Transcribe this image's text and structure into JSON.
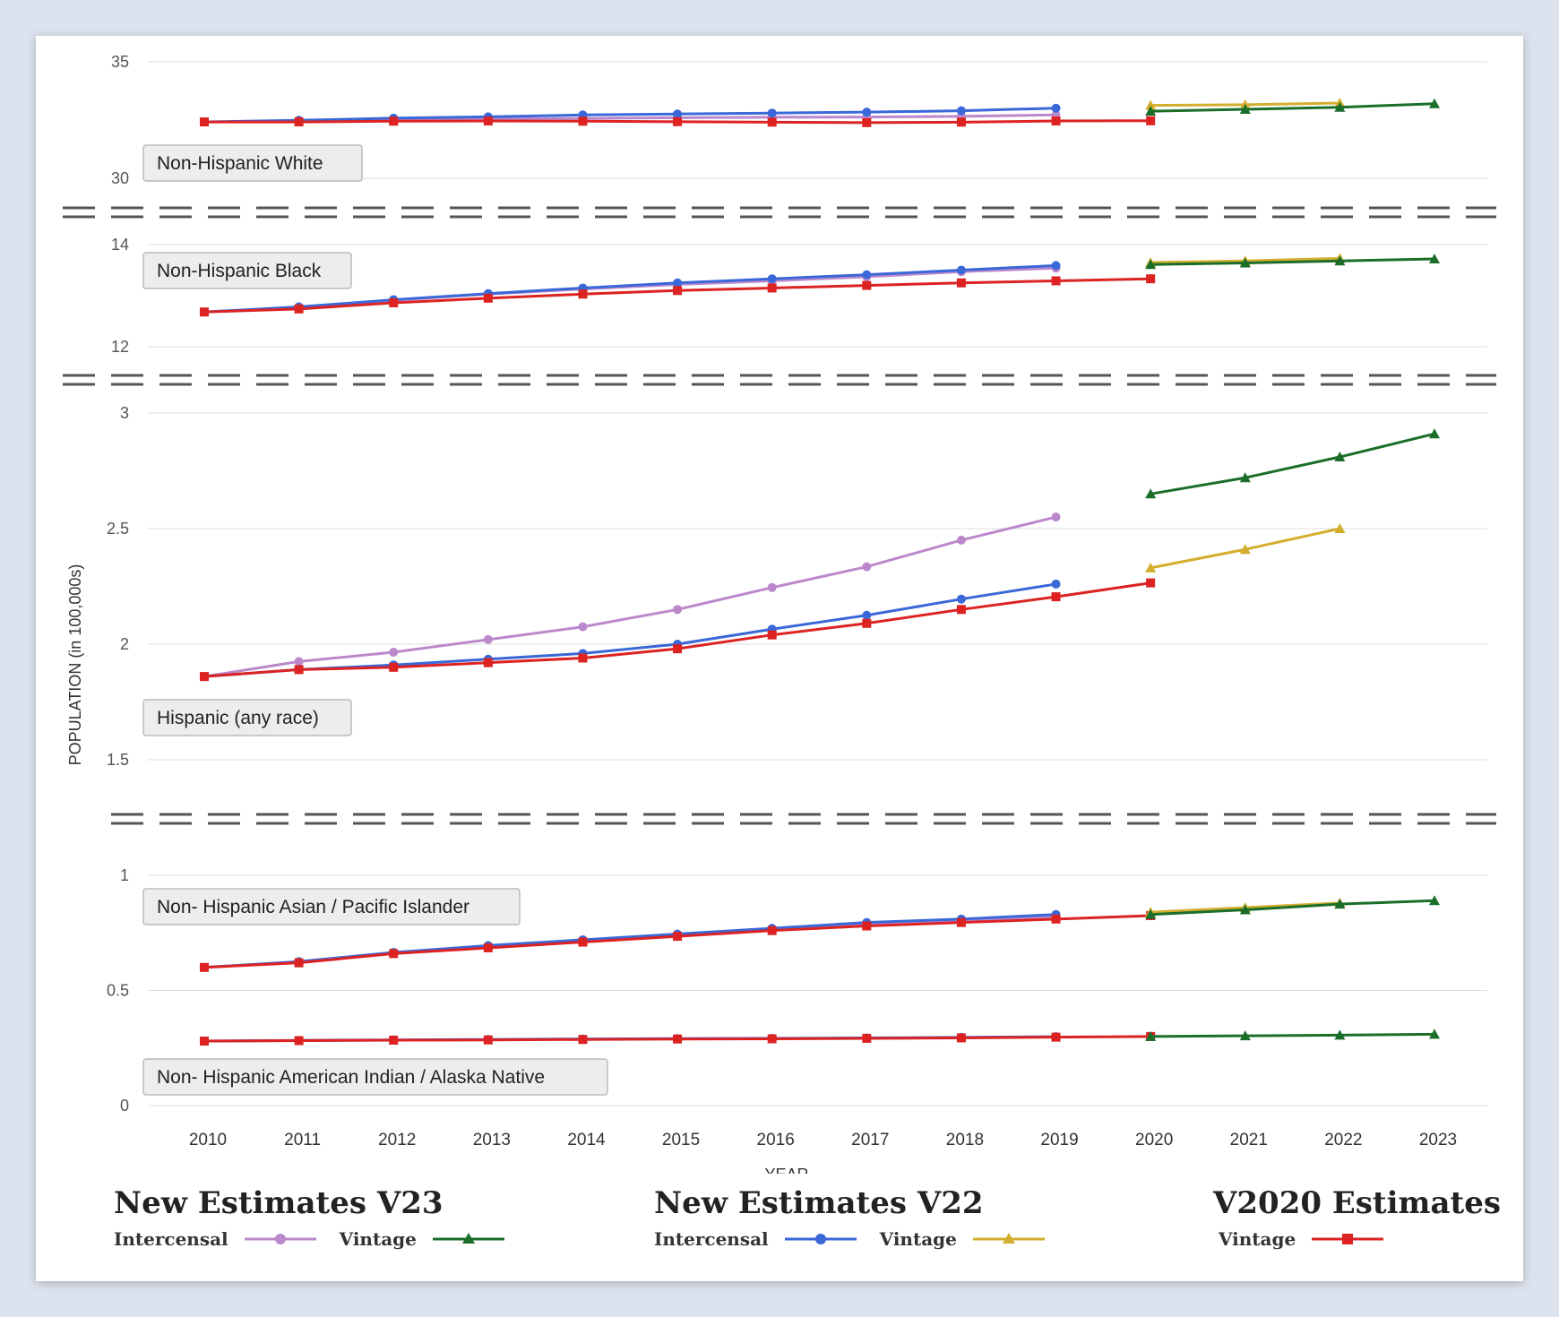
{
  "chart_data": {
    "type": "line",
    "title": "",
    "xlabel": "YEAR",
    "ylabel": "POPULATION (in 100,000s)",
    "x": [
      2010,
      2011,
      2012,
      2013,
      2014,
      2015,
      2016,
      2017,
      2018,
      2019,
      2020,
      2021,
      2022,
      2023
    ],
    "colors": {
      "v23_intercensal": "#bb88cc",
      "v23_vintage": "#1b6e2a",
      "v22_intercensal": "#3a68d8",
      "v22_vintage": "#d4ae2e",
      "v2020_vintage": "#dd2222"
    },
    "series_info": [
      {
        "key": "v23_intercensal",
        "name": "New Estimates V23 Intercensal",
        "marker": "circle"
      },
      {
        "key": "v22_intercensal",
        "name": "New Estimates V22 Intercensal",
        "marker": "circle"
      },
      {
        "key": "v2020_vintage",
        "name": "V2020 Estimates Vintage",
        "marker": "square"
      },
      {
        "key": "v22_vintage",
        "name": "New Estimates V22 Vintage",
        "marker": "triangle"
      },
      {
        "key": "v23_vintage",
        "name": "New Estimates V23 Vintage",
        "marker": "triangle"
      }
    ],
    "panels": [
      {
        "label": "Non-Hispanic White",
        "ylim": [
          30,
          35
        ],
        "ticks": [
          "35",
          "30"
        ],
        "groups": [
          {
            "v23_intercensal": [
              32.42,
              32.44,
              32.51,
              32.55,
              32.57,
              32.6,
              32.62,
              32.63,
              32.66,
              32.72
            ],
            "v22_intercensal": [
              32.42,
              32.49,
              32.58,
              32.64,
              32.72,
              32.76,
              32.8,
              32.84,
              32.9,
              33.01
            ],
            "v2020_vintage": [
              32.42,
              32.42,
              32.45,
              32.46,
              32.45,
              32.43,
              32.41,
              32.39,
              32.41,
              32.46,
              32.47
            ],
            "v22_vintage": {
              "x": [
                2020,
                2021,
                2022
              ],
              "values": [
                33.13,
                33.16,
                33.23
              ]
            },
            "v23_vintage": {
              "x": [
                2020,
                2021,
                2022,
                2023
              ],
              "values": [
                32.88,
                32.96,
                33.05,
                33.2
              ]
            }
          }
        ]
      },
      {
        "label": "Non-Hispanic Black",
        "ylim": [
          12,
          14
        ],
        "ticks": [
          "14",
          "12"
        ],
        "groups": [
          {
            "v23_intercensal": [
              12.68,
              12.77,
              12.91,
              13.03,
              13.13,
              13.22,
              13.29,
              13.37,
              13.47,
              13.54
            ],
            "v22_intercensal": [
              12.68,
              12.78,
              12.92,
              13.04,
              13.15,
              13.25,
              13.33,
              13.41,
              13.5,
              13.59
            ],
            "v2020_vintage": [
              12.68,
              12.74,
              12.86,
              12.95,
              13.03,
              13.1,
              13.15,
              13.2,
              13.25,
              13.29,
              13.33
            ],
            "v22_vintage": {
              "x": [
                2020,
                2021,
                2022
              ],
              "values": [
                13.65,
                13.68,
                13.73
              ]
            },
            "v23_vintage": {
              "x": [
                2020,
                2021,
                2022,
                2023
              ],
              "values": [
                13.61,
                13.64,
                13.68,
                13.72
              ]
            }
          }
        ]
      },
      {
        "label": "Hispanic (any race)",
        "ylim": [
          1.5,
          3
        ],
        "ticks": [
          "3",
          "2.5",
          "2",
          "1.5"
        ],
        "groups": [
          {
            "v23_intercensal": [
              1.86,
              1.925,
              1.965,
              2.02,
              2.075,
              2.15,
              2.245,
              2.335,
              2.45,
              2.55
            ],
            "v22_intercensal": [
              1.86,
              1.89,
              1.91,
              1.935,
              1.96,
              2.0,
              2.065,
              2.125,
              2.195,
              2.26
            ],
            "v2020_vintage": [
              1.86,
              1.89,
              1.9,
              1.92,
              1.94,
              1.98,
              2.04,
              2.09,
              2.15,
              2.205,
              2.265
            ],
            "v22_vintage": {
              "x": [
                2020,
                2021,
                2022
              ],
              "values": [
                2.33,
                2.41,
                2.5
              ]
            },
            "v23_vintage": {
              "x": [
                2020,
                2021,
                2022,
                2023
              ],
              "values": [
                2.65,
                2.72,
                2.81,
                2.91
              ]
            }
          }
        ]
      },
      {
        "label": "Non- Hispanic Asian / Pacific Islander",
        "label2": "Non- Hispanic American Indian / Alaska Native",
        "ylim": [
          0,
          1
        ],
        "ticks": [
          "1",
          "0.5",
          "0"
        ],
        "groups": [
          {
            "v23_intercensal": [
              0.6,
              0.625,
              0.665,
              0.69,
              0.715,
              0.74,
              0.765,
              0.79,
              0.805,
              0.82
            ],
            "v22_intercensal": [
              0.6,
              0.625,
              0.665,
              0.695,
              0.72,
              0.745,
              0.77,
              0.795,
              0.81,
              0.83
            ],
            "v2020_vintage": [
              0.6,
              0.62,
              0.66,
              0.685,
              0.71,
              0.735,
              0.76,
              0.78,
              0.795,
              0.81,
              0.825
            ],
            "v22_vintage": {
              "x": [
                2020,
                2021,
                2022
              ],
              "values": [
                0.84,
                0.86,
                0.88
              ]
            },
            "v23_vintage": {
              "x": [
                2020,
                2021,
                2022,
                2023
              ],
              "values": [
                0.83,
                0.85,
                0.875,
                0.89
              ]
            }
          },
          {
            "v23_intercensal": [
              0.28,
              0.282,
              0.284,
              0.286,
              0.288,
              0.29,
              0.291,
              0.292,
              0.295,
              0.298
            ],
            "v22_intercensal": [
              0.28,
              0.283,
              0.285,
              0.287,
              0.289,
              0.291,
              0.292,
              0.294,
              0.296,
              0.299
            ],
            "v2020_vintage": [
              0.28,
              0.282,
              0.284,
              0.285,
              0.287,
              0.289,
              0.29,
              0.292,
              0.294,
              0.297,
              0.3
            ],
            "v23_vintage": {
              "x": [
                2020,
                2021,
                2022,
                2023
              ],
              "values": [
                0.3,
                0.303,
                0.306,
                0.31
              ]
            }
          }
        ]
      }
    ]
  },
  "legend": {
    "v23": {
      "title": "New Estimates V23",
      "intercensal": "Intercensal",
      "vintage": "Vintage"
    },
    "v22": {
      "title": "New Estimates V22",
      "intercensal": "Intercensal",
      "vintage": "Vintage"
    },
    "v2020": {
      "title": "V2020 Estimates",
      "vintage": "Vintage"
    }
  }
}
